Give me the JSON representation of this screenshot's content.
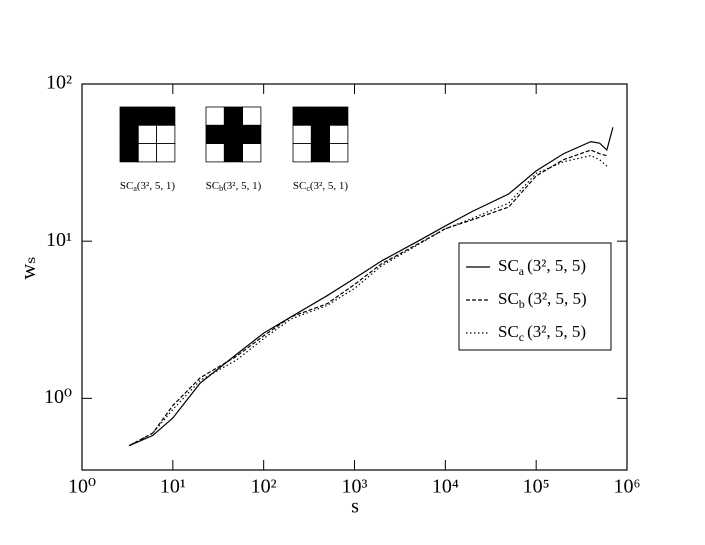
{
  "chart_data": {
    "type": "line",
    "x_label": "s",
    "y_label": "wₛ",
    "x": [
      3.3,
      6,
      10,
      20,
      50,
      100,
      200,
      500,
      1000,
      2000,
      5000,
      10000,
      20000,
      50000,
      100000,
      200000,
      400000,
      500000,
      600000,
      700000
    ],
    "series": [
      {
        "name": "SC",
        "sub": "a",
        "params": "(3², 5, 5)",
        "color": "#000000",
        "style": "solid",
        "values": [
          0.5,
          0.58,
          0.75,
          1.25,
          1.9,
          2.6,
          3.3,
          4.5,
          5.8,
          7.5,
          10,
          12.5,
          15.5,
          20,
          28,
          36,
          43,
          42,
          38,
          53
        ]
      },
      {
        "name": "SC",
        "sub": "b",
        "params": "(3², 5, 5)",
        "color": "#000000",
        "style": "dashed",
        "values": [
          0.5,
          0.6,
          0.9,
          1.35,
          1.85,
          2.5,
          3.3,
          4.0,
          5.3,
          7.2,
          9.6,
          12,
          13.7,
          16.5,
          26,
          33,
          38,
          36,
          35,
          null
        ]
      },
      {
        "name": "SC",
        "sub": "c",
        "params": "(3², 5, 5)",
        "color": "#000000",
        "style": "dotted",
        "values": [
          0.5,
          0.6,
          0.85,
          1.3,
          1.75,
          2.4,
          3.2,
          3.9,
          5.0,
          7.0,
          9.5,
          12,
          14,
          17.5,
          27,
          32,
          35,
          33,
          30,
          null
        ]
      }
    ],
    "xlog": true,
    "ylog": true,
    "xlim": [
      1,
      1000000
    ],
    "ylim": [
      0.35,
      100
    ],
    "xticks": [
      {
        "value": 1,
        "label": "10⁰"
      },
      {
        "value": 10,
        "label": "10¹"
      },
      {
        "value": 100,
        "label": "10²"
      },
      {
        "value": 1000,
        "label": "10³"
      },
      {
        "value": 10000,
        "label": "10⁴"
      },
      {
        "value": 100000,
        "label": "10⁵"
      },
      {
        "value": 1000000,
        "label": "10⁶"
      }
    ],
    "yticks": [
      {
        "value": 1,
        "label": "10⁰"
      },
      {
        "value": 10,
        "label": "10¹"
      },
      {
        "value": 100,
        "label": "10²"
      }
    ],
    "legend": "right",
    "insets": [
      {
        "name": "SC",
        "sub": "a",
        "params": "(3², 5, 1)",
        "pattern": [
          [
            1,
            1,
            1
          ],
          [
            1,
            0,
            0
          ],
          [
            1,
            0,
            0
          ]
        ]
      },
      {
        "name": "SC",
        "sub": "b",
        "params": "(3², 5, 1)",
        "pattern": [
          [
            0,
            1,
            0
          ],
          [
            1,
            1,
            1
          ],
          [
            0,
            1,
            0
          ]
        ]
      },
      {
        "name": "SC",
        "sub": "c",
        "params": "(3², 5, 1)",
        "pattern": [
          [
            1,
            1,
            1
          ],
          [
            0,
            1,
            0
          ],
          [
            0,
            1,
            0
          ]
        ]
      }
    ]
  }
}
